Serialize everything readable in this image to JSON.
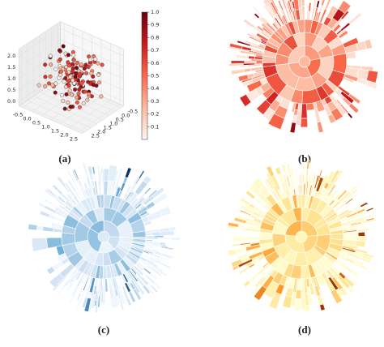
{
  "chart_data": [
    {
      "type": "scatter3d",
      "label": "(a)",
      "xlim": [
        -0.7,
        2.7
      ],
      "xticks": [
        -0.5,
        {
          "value": 0,
          "label": "0.0"
        },
        0.5,
        {
          "value": 1,
          "label": "1.0"
        },
        1.5,
        {
          "value": 2,
          "label": "2.0"
        },
        2.5
      ],
      "ylim": [
        -0.7,
        2.7
      ],
      "yticks": [
        -0.5,
        {
          "value": 0,
          "label": "0.0"
        },
        0.5,
        {
          "value": 1,
          "label": "1.0"
        },
        1.5,
        {
          "value": 2,
          "label": "2.0"
        },
        2.5
      ],
      "zlim": [
        -0.2,
        2.3
      ],
      "zticks": [
        {
          "value": 0,
          "label": "0.0"
        },
        0.5,
        {
          "value": 1,
          "label": "1.0"
        },
        1.5,
        {
          "value": 2,
          "label": "2.0"
        }
      ],
      "colorbar": {
        "lim": [
          0,
          1
        ],
        "ticks": [
          0.1,
          0.2,
          0.3,
          0.4,
          0.5,
          0.6,
          0.7,
          0.8,
          0.9,
          {
            "value": 1,
            "label": "1.0"
          }
        ]
      },
      "colormap": [
        "#fff5f0",
        "#fcbba1",
        "#fb6a4a",
        "#cb181d",
        "#67000d"
      ]
    },
    {
      "type": "sunburst",
      "label": "(b)",
      "colormap": [
        "#fff5f0",
        "#fcbba1",
        "#fb6a4a",
        "#cb181d",
        "#67000d"
      ]
    },
    {
      "type": "sunburst",
      "label": "(c)",
      "colormap": [
        "#f7fbff",
        "#deebf7",
        "#c6dbef",
        "#6baed6",
        "#08306b"
      ]
    },
    {
      "type": "sunburst",
      "label": "(d)",
      "colormap": [
        "#ffffe5",
        "#fff7bc",
        "#fee391",
        "#fe9929",
        "#993404"
      ]
    }
  ]
}
